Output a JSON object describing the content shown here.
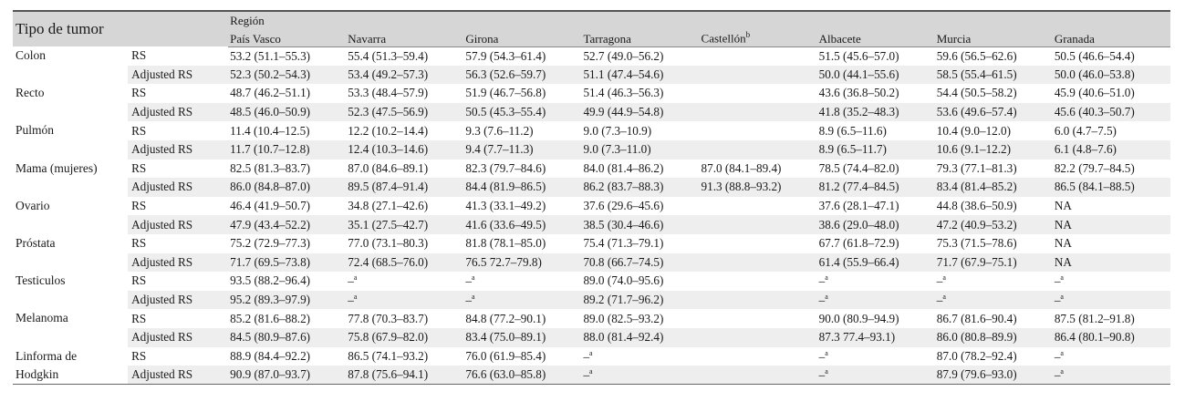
{
  "header": {
    "tumor_label": "Tipo de tumor",
    "region_label": "Región",
    "regions": [
      "País Vasco",
      "Navarra",
      "Girona",
      "Tarragona",
      "Castellón",
      "Albacete",
      "Murcia",
      "Granada"
    ],
    "castellon_superscript": "b"
  },
  "na_symbol": "–",
  "na_superscript": "a",
  "tumors": [
    {
      "name": "Colon",
      "rows": [
        {
          "metric": "RS",
          "values": [
            "53.2 (51.1–55.3)",
            "55.4 (51.3–59.4)",
            "57.9 (54.3–61.4)",
            "52.7 (49.0–56.2)",
            "",
            "51.5 (45.6–57.0)",
            "59.6 (56.5–62.6)",
            "50.5 (46.6–54.4)"
          ]
        },
        {
          "metric": "Adjusted RS",
          "values": [
            "52.3 (50.2–54.3)",
            "53.4 (49.2–57.3)",
            "56.3 (52.6–59.7)",
            "51.1 (47.4–54.6)",
            "",
            "50.0 (44.1–55.6)",
            "58.5 (55.4–61.5)",
            "50.0 (46.0–53.8)"
          ]
        }
      ]
    },
    {
      "name": "Recto",
      "rows": [
        {
          "metric": "RS",
          "values": [
            "48.7 (46.2–51.1)",
            "53.3 (48.4–57.9)",
            "51.9 (46.7–56.8)",
            "51.4 (46.3–56.3)",
            "",
            "43.6 (36.8–50.2)",
            "54.4 (50.5–58.2)",
            "45.9 (40.6–51.0)"
          ]
        },
        {
          "metric": "Adjusted RS",
          "values": [
            "48.5 (46.0–50.9)",
            "52.3 (47.5–56.9)",
            "50.5 (45.3–55.4)",
            "49.9 (44.9–54.8)",
            "",
            "41.8 (35.2–48.3)",
            "53.6 (49.6–57.4)",
            "45.6 (40.3–50.7)"
          ]
        }
      ]
    },
    {
      "name": "Pulmón",
      "rows": [
        {
          "metric": "RS",
          "values": [
            "11.4 (10.4–12.5)",
            "12.2 (10.2–14.4)",
            "9.3 (7.6–11.2)",
            "9.0 (7.3–10.9)",
            "",
            "8.9 (6.5–11.6)",
            "10.4 (9.0–12.0)",
            "6.0 (4.7–7.5)"
          ]
        },
        {
          "metric": "Adjusted RS",
          "values": [
            "11.7 (10.7–12.8)",
            "12.4 (10.3–14.6)",
            "9.4 (7.7–11.3)",
            "9.0 (7.3–11.0)",
            "",
            "8.9 (6.5–11.7)",
            "10.6 (9.1–12.2)",
            "6.1 (4.8–7.6)"
          ]
        }
      ]
    },
    {
      "name": "Mama (mujeres)",
      "rows": [
        {
          "metric": "RS",
          "values": [
            "82.5 (81.3–83.7)",
            "87.0 (84.6–89.1)",
            "82.3 (79.7–84.6)",
            "84.0 (81.4–86.2)",
            "87.0 (84.1–89.4)",
            "78.5 (74.4–82.0)",
            "79.3 (77.1–81.3)",
            "82.2 (79.7–84.5)"
          ]
        },
        {
          "metric": "Adjusted RS",
          "values": [
            "86.0 (84.8–87.0)",
            "89.5 (87.4–91.4)",
            "84.4 (81.9–86.5)",
            "86.2 (83.7–88.3)",
            "91.3 (88.8–93.2)",
            "81.2 (77.4–84.5)",
            "83.4 (81.4–85.2)",
            "86.5 (84.1–88.5)"
          ]
        }
      ]
    },
    {
      "name": "Ovario",
      "rows": [
        {
          "metric": "RS",
          "values": [
            "46.4 (41.9–50.7)",
            "34.8 (27.1–42.6)",
            "41.3 (33.1–49.2)",
            "37.6 (29.6–45.6)",
            "",
            "37.6 (28.1–47.1)",
            "44.8 (38.6–50.9)",
            "NA"
          ]
        },
        {
          "metric": "Adjusted RS",
          "values": [
            "47.9 (43.4–52.2)",
            "35.1 (27.5–42.7)",
            "41.6 (33.6–49.5)",
            "38.5 (30.4–46.6)",
            "",
            "38.6 (29.0–48.0)",
            "47.2 (40.9–53.2)",
            "NA"
          ]
        }
      ]
    },
    {
      "name": "Próstata",
      "rows": [
        {
          "metric": "RS",
          "values": [
            "75.2 (72.9–77.3)",
            "77.0 (73.1–80.3)",
            "81.8 (78.1–85.0)",
            "75.4 (71.3–79.1)",
            "",
            "67.7 (61.8–72.9)",
            "75.3 (71.5–78.6)",
            "NA"
          ]
        },
        {
          "metric": "Adjusted RS",
          "values": [
            "71.7 (69.5–73.8)",
            "72.4 (68.5–76.0)",
            "76.5 72.7–79.8)",
            "70.8 (66.7–74.5)",
            "",
            "61.4 (55.9–66.4)",
            "71.7 (67.9–75.1)",
            "NA"
          ]
        }
      ]
    },
    {
      "name": "Testiculos",
      "rows": [
        {
          "metric": "RS",
          "values": [
            "93.5 (88.2–96.4)",
            "#",
            "#",
            "89.0 (74.0–95.6)",
            "",
            "#",
            "#",
            "#"
          ]
        },
        {
          "metric": "Adjusted RS",
          "values": [
            "95.2 (89.3–97.9)",
            "#",
            "#",
            "89.2 (71.7–96.2)",
            "",
            "#",
            "#",
            "#"
          ]
        }
      ]
    },
    {
      "name": "Melanoma",
      "rows": [
        {
          "metric": "RS",
          "values": [
            "85.2 (81.6–88.2)",
            "77.8 (70.3–83.7)",
            "84.8 (77.2–90.1)",
            "89.0 (82.5–93.2)",
            "",
            "90.0 (80.9–94.9)",
            "86.7 (81.6–90.4)",
            "87.5 (81.2–91.8)"
          ]
        },
        {
          "metric": "Adjusted RS",
          "values": [
            "84.5 (80.9–87.6)",
            "75.8 (67.9–82.0)",
            "83.4 (75.0–89.1)",
            "88.0 (81.4–92.4)",
            "",
            "87.3 77.4–93.1)",
            "86.0 (80.8–89.9)",
            "86.4 (80.1–90.8)"
          ]
        }
      ]
    },
    {
      "name": "Linforma de Hodgkin",
      "name_line1": "Linforma de",
      "name_line2": "Hodgkin",
      "rows": [
        {
          "metric": "RS",
          "values": [
            "88.9 (84.4–92.2)",
            "86.5 (74.1–93.2)",
            "76.0 (61.9–85.4)",
            "#",
            "",
            "#",
            "87.0 (78.2–92.4)",
            "#"
          ]
        },
        {
          "metric": "Adjusted RS",
          "values": [
            "90.9 (87.0–93.7)",
            "87.8 (75.6–94.1)",
            "76.6 (63.0–85.8)",
            "#",
            "",
            "#",
            "87.9 (79.6–93.0)",
            "#"
          ]
        }
      ]
    }
  ]
}
